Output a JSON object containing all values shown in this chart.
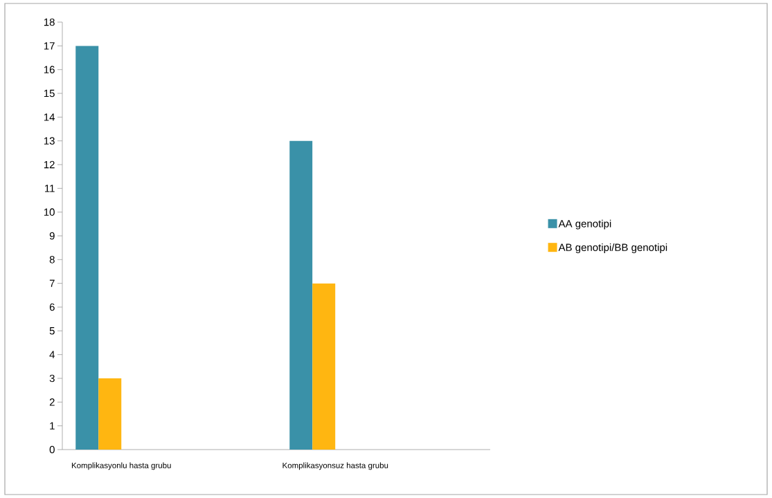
{
  "chart_data": {
    "type": "bar",
    "categories": [
      "Komplikasyonlu hasta grubu",
      null,
      "Komplikasyonsuz hasta grubu",
      null
    ],
    "series": [
      {
        "name": "AA genotipi",
        "color": "#3a91a8",
        "values": [
          17,
          null,
          13,
          null
        ]
      },
      {
        "name": "AB genotipi/BB genotipi",
        "color": "#ffb611",
        "values": [
          3,
          null,
          7,
          null
        ]
      }
    ],
    "ylim": [
      0,
      18
    ],
    "yticks": [
      0,
      1,
      2,
      3,
      4,
      5,
      6,
      7,
      8,
      9,
      10,
      11,
      12,
      13,
      14,
      15,
      16,
      17,
      18
    ],
    "grid": false,
    "legend": "right"
  }
}
